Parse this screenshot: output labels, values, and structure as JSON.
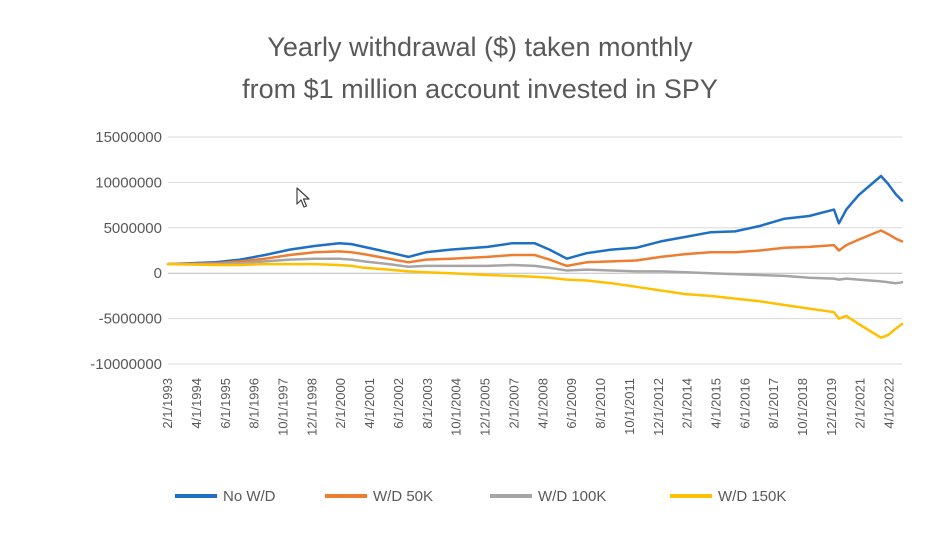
{
  "chart_data": {
    "type": "line",
    "title": [
      "Yearly withdrawal ($) taken monthly",
      "from $1 million account invested in SPY"
    ],
    "xlabel": "",
    "ylabel": "",
    "ylim": [
      -10000000,
      15000000
    ],
    "y_ticks": [
      15000000,
      10000000,
      5000000,
      0,
      -5000000,
      -10000000
    ],
    "y_tick_labels": [
      "15000000",
      "10000000",
      "5000000",
      "0",
      "-5000000",
      "-10000000"
    ],
    "x_range": [
      1993.08,
      2022.75
    ],
    "x_tick_labels": [
      "2/1/1993",
      "4/1/1994",
      "6/1/1995",
      "8/1/1996",
      "10/1/1997",
      "12/1/1998",
      "2/1/2000",
      "4/1/2001",
      "6/1/2002",
      "8/1/2003",
      "10/1/2004",
      "12/1/2005",
      "2/1/2007",
      "4/1/2008",
      "6/1/2009",
      "8/1/2010",
      "10/1/2011",
      "12/1/2012",
      "2/1/2014",
      "4/1/2015",
      "6/1/2016",
      "8/1/2017",
      "10/1/2018",
      "12/1/2019",
      "2/1/2021",
      "4/1/2022"
    ],
    "x_tick_values": [
      1993.08,
      1994.25,
      1995.42,
      1996.58,
      1997.75,
      1998.92,
      2000.08,
      2001.25,
      2002.42,
      2003.58,
      2004.75,
      2005.92,
      2007.08,
      2008.25,
      2009.42,
      2010.58,
      2011.75,
      2012.92,
      2014.08,
      2015.25,
      2016.42,
      2017.58,
      2018.75,
      2019.92,
      2021.08,
      2022.25
    ],
    "grid": true,
    "legend_position": "bottom",
    "series": [
      {
        "name": "No W/D",
        "color": "#1f6fc6",
        "points": [
          [
            1993.08,
            1000000
          ],
          [
            1995.0,
            1200000
          ],
          [
            1996.0,
            1500000
          ],
          [
            1997.0,
            2000000
          ],
          [
            1998.0,
            2600000
          ],
          [
            1999.0,
            3000000
          ],
          [
            2000.0,
            3300000
          ],
          [
            2000.5,
            3200000
          ],
          [
            2001.0,
            2900000
          ],
          [
            2002.0,
            2300000
          ],
          [
            2002.8,
            1800000
          ],
          [
            2003.5,
            2300000
          ],
          [
            2004.5,
            2600000
          ],
          [
            2006.0,
            2900000
          ],
          [
            2007.0,
            3300000
          ],
          [
            2007.9,
            3300000
          ],
          [
            2008.5,
            2600000
          ],
          [
            2009.2,
            1600000
          ],
          [
            2010.0,
            2200000
          ],
          [
            2011.0,
            2600000
          ],
          [
            2012.0,
            2800000
          ],
          [
            2013.0,
            3500000
          ],
          [
            2014.0,
            4000000
          ],
          [
            2015.0,
            4500000
          ],
          [
            2016.0,
            4600000
          ],
          [
            2017.0,
            5200000
          ],
          [
            2018.0,
            6000000
          ],
          [
            2019.0,
            6300000
          ],
          [
            2020.0,
            7000000
          ],
          [
            2020.2,
            5500000
          ],
          [
            2020.5,
            7000000
          ],
          [
            2021.0,
            8600000
          ],
          [
            2021.9,
            10700000
          ],
          [
            2022.2,
            9800000
          ],
          [
            2022.5,
            8700000
          ],
          [
            2022.75,
            8000000
          ]
        ]
      },
      {
        "name": "W/D 50K",
        "color": "#ed7d31",
        "points": [
          [
            1993.08,
            1000000
          ],
          [
            1995.0,
            1100000
          ],
          [
            1996.0,
            1300000
          ],
          [
            1997.0,
            1600000
          ],
          [
            1998.0,
            2000000
          ],
          [
            1999.0,
            2300000
          ],
          [
            2000.0,
            2400000
          ],
          [
            2000.5,
            2300000
          ],
          [
            2001.0,
            2100000
          ],
          [
            2002.0,
            1600000
          ],
          [
            2002.8,
            1200000
          ],
          [
            2003.5,
            1500000
          ],
          [
            2004.5,
            1600000
          ],
          [
            2006.0,
            1800000
          ],
          [
            2007.0,
            2000000
          ],
          [
            2007.9,
            2000000
          ],
          [
            2008.5,
            1500000
          ],
          [
            2009.2,
            800000
          ],
          [
            2010.0,
            1200000
          ],
          [
            2011.0,
            1300000
          ],
          [
            2012.0,
            1400000
          ],
          [
            2013.0,
            1800000
          ],
          [
            2014.0,
            2100000
          ],
          [
            2015.0,
            2300000
          ],
          [
            2016.0,
            2300000
          ],
          [
            2017.0,
            2500000
          ],
          [
            2018.0,
            2800000
          ],
          [
            2019.0,
            2900000
          ],
          [
            2020.0,
            3100000
          ],
          [
            2020.2,
            2500000
          ],
          [
            2020.5,
            3100000
          ],
          [
            2021.0,
            3700000
          ],
          [
            2021.9,
            4700000
          ],
          [
            2022.2,
            4300000
          ],
          [
            2022.5,
            3800000
          ],
          [
            2022.75,
            3500000
          ]
        ]
      },
      {
        "name": "W/D 100K",
        "color": "#a5a5a5",
        "points": [
          [
            1993.08,
            1000000
          ],
          [
            1995.0,
            1000000
          ],
          [
            1996.0,
            1100000
          ],
          [
            1997.0,
            1300000
          ],
          [
            1998.0,
            1500000
          ],
          [
            1999.0,
            1600000
          ],
          [
            2000.0,
            1600000
          ],
          [
            2000.5,
            1500000
          ],
          [
            2001.0,
            1300000
          ],
          [
            2002.0,
            1000000
          ],
          [
            2002.8,
            700000
          ],
          [
            2003.5,
            800000
          ],
          [
            2004.5,
            800000
          ],
          [
            2006.0,
            800000
          ],
          [
            2007.0,
            900000
          ],
          [
            2007.9,
            800000
          ],
          [
            2008.5,
            600000
          ],
          [
            2009.2,
            300000
          ],
          [
            2010.0,
            400000
          ],
          [
            2011.0,
            300000
          ],
          [
            2012.0,
            200000
          ],
          [
            2013.0,
            200000
          ],
          [
            2014.0,
            100000
          ],
          [
            2015.0,
            0
          ],
          [
            2016.0,
            -100000
          ],
          [
            2017.0,
            -200000
          ],
          [
            2018.0,
            -300000
          ],
          [
            2019.0,
            -500000
          ],
          [
            2020.0,
            -600000
          ],
          [
            2020.2,
            -700000
          ],
          [
            2020.5,
            -600000
          ],
          [
            2021.0,
            -700000
          ],
          [
            2021.9,
            -900000
          ],
          [
            2022.2,
            -1000000
          ],
          [
            2022.5,
            -1100000
          ],
          [
            2022.75,
            -1000000
          ]
        ]
      },
      {
        "name": "W/D 150K",
        "color": "#ffc000",
        "points": [
          [
            1993.08,
            1000000
          ],
          [
            1995.0,
            900000
          ],
          [
            1996.0,
            900000
          ],
          [
            1997.0,
            1000000
          ],
          [
            1998.0,
            1000000
          ],
          [
            1999.0,
            1000000
          ],
          [
            2000.0,
            900000
          ],
          [
            2000.5,
            800000
          ],
          [
            2001.0,
            600000
          ],
          [
            2002.0,
            400000
          ],
          [
            2002.8,
            200000
          ],
          [
            2003.5,
            100000
          ],
          [
            2004.5,
            0
          ],
          [
            2006.0,
            -200000
          ],
          [
            2007.0,
            -300000
          ],
          [
            2007.9,
            -400000
          ],
          [
            2008.5,
            -500000
          ],
          [
            2009.2,
            -700000
          ],
          [
            2010.0,
            -800000
          ],
          [
            2011.0,
            -1100000
          ],
          [
            2012.0,
            -1500000
          ],
          [
            2013.0,
            -1900000
          ],
          [
            2014.0,
            -2300000
          ],
          [
            2015.0,
            -2500000
          ],
          [
            2016.0,
            -2800000
          ],
          [
            2017.0,
            -3100000
          ],
          [
            2018.0,
            -3500000
          ],
          [
            2019.0,
            -3900000
          ],
          [
            2020.0,
            -4300000
          ],
          [
            2020.2,
            -5000000
          ],
          [
            2020.5,
            -4700000
          ],
          [
            2021.0,
            -5600000
          ],
          [
            2021.9,
            -7100000
          ],
          [
            2022.2,
            -6800000
          ],
          [
            2022.5,
            -6100000
          ],
          [
            2022.75,
            -5600000
          ]
        ]
      }
    ]
  }
}
